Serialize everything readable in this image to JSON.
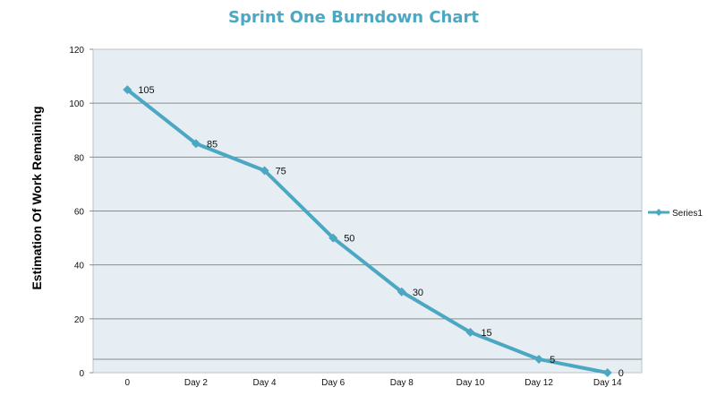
{
  "chart_data": {
    "type": "line",
    "title": "Sprint One Burndown Chart",
    "xlabel": "",
    "ylabel": "Estimation Of Work Remaining",
    "categories": [
      "0",
      "Day 2",
      "Day 4",
      "Day 6",
      "Day 8",
      "Day 10",
      "Day 12",
      "Day 14"
    ],
    "series": [
      {
        "name": "Series1",
        "values": [
          105,
          85,
          75,
          50,
          30,
          15,
          5,
          0
        ],
        "color": "#4ba7c2"
      }
    ],
    "ylim": [
      0,
      120
    ],
    "yticks": [
      "0",
      "20",
      "40",
      "60",
      "80",
      "100",
      "120"
    ],
    "data_labels": [
      "105",
      "85",
      "75",
      "50",
      "30",
      "15",
      "5",
      "0"
    ],
    "grid": true,
    "plot_background": "#e6eef3",
    "legend": "right"
  }
}
